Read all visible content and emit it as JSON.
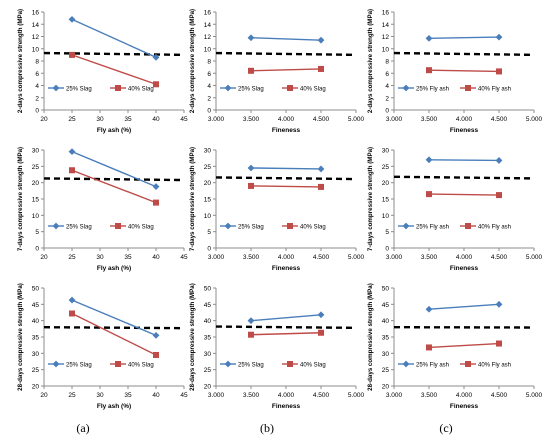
{
  "colors": {
    "series1": "#4a7ebb",
    "series2": "#be4b48",
    "reference": "#000000",
    "axis": "#8c8c8c",
    "text": "#000000"
  },
  "columns": [
    {
      "label": "(a)",
      "xlabel": "Fly ash (%)",
      "xlim": [
        20,
        45
      ],
      "xticks": [
        "20",
        "25",
        "30",
        "35",
        "40",
        "45"
      ]
    },
    {
      "label": "(b)",
      "xlabel": "Fineness",
      "xlim": [
        3.0,
        5.0
      ],
      "xticks": [
        "3.000",
        "3.500",
        "4.000",
        "4.500",
        "5.000"
      ]
    },
    {
      "label": "(c)",
      "xlabel": "Fineness",
      "xlim": [
        3.0,
        5.0
      ],
      "xticks": [
        "3.000",
        "3.500",
        "4.000",
        "4.500",
        "5.000"
      ]
    }
  ],
  "rows": [
    {
      "ylabel": "2-days compressive strength (MPa)",
      "ylim": [
        0,
        16
      ],
      "yticks": [
        "0",
        "2",
        "4",
        "6",
        "8",
        "10",
        "12",
        "14",
        "16"
      ]
    },
    {
      "ylabel": "7-days compressive strength (MPa)",
      "ylim": [
        0,
        30
      ],
      "yticks": [
        "0",
        "5",
        "10",
        "15",
        "20",
        "25",
        "30"
      ]
    },
    {
      "ylabel": "28-days compressive strength (MPa)",
      "ylim": [
        20,
        50
      ],
      "yticks": [
        "20",
        "25",
        "30",
        "35",
        "40",
        "45",
        "50"
      ]
    }
  ],
  "chart_data": [
    {
      "type": "line",
      "xlabel": "Fly ash (%)",
      "ylabel": "2-days compressive strength (MPa)",
      "xlim": [
        20,
        45
      ],
      "ylim": [
        0,
        16
      ],
      "grid": false,
      "legend": "bottom-left",
      "series": [
        {
          "name": "25% Slag",
          "x": [
            25,
            40
          ],
          "values": [
            14.8,
            8.6
          ]
        },
        {
          "name": "40% Slag",
          "x": [
            25,
            40
          ],
          "values": [
            9.0,
            4.2
          ]
        }
      ],
      "reference_line": {
        "x": [
          20,
          45
        ],
        "values": [
          9.3,
          9.0
        ]
      }
    },
    {
      "type": "line",
      "xlabel": "Fineness",
      "ylabel": "2-days compressive strength (MPa)",
      "xlim": [
        3.0,
        5.0
      ],
      "ylim": [
        0,
        16
      ],
      "grid": false,
      "legend": "bottom-left",
      "series": [
        {
          "name": "25% Slag",
          "x": [
            3.5,
            4.5
          ],
          "values": [
            11.8,
            11.4
          ]
        },
        {
          "name": "40% Slag",
          "x": [
            3.5,
            4.5
          ],
          "values": [
            6.4,
            6.7
          ]
        }
      ],
      "reference_line": {
        "x": [
          3.0,
          5.0
        ],
        "values": [
          9.3,
          9.0
        ]
      }
    },
    {
      "type": "line",
      "xlabel": "Fineness",
      "ylabel": "2-days compressive strength (MPa)",
      "xlim": [
        3.0,
        5.0
      ],
      "ylim": [
        0,
        16
      ],
      "grid": false,
      "legend": "bottom-left",
      "series": [
        {
          "name": "25% Fly ash",
          "x": [
            3.5,
            4.5
          ],
          "values": [
            11.7,
            11.9
          ]
        },
        {
          "name": "40% Fly ash",
          "x": [
            3.5,
            4.5
          ],
          "values": [
            6.5,
            6.3
          ]
        }
      ],
      "reference_line": {
        "x": [
          3.0,
          5.0
        ],
        "values": [
          9.3,
          9.0
        ]
      }
    },
    {
      "type": "line",
      "xlabel": "Fly ash (%)",
      "ylabel": "7-days compressive strength (MPa)",
      "xlim": [
        20,
        45
      ],
      "ylim": [
        0,
        30
      ],
      "grid": false,
      "legend": "bottom-left",
      "series": [
        {
          "name": "25% Slag",
          "x": [
            25,
            40
          ],
          "values": [
            29.5,
            18.8
          ]
        },
        {
          "name": "40% Slag",
          "x": [
            25,
            40
          ],
          "values": [
            23.8,
            13.9
          ]
        }
      ],
      "reference_line": {
        "x": [
          20,
          45
        ],
        "values": [
          21.3,
          20.8
        ]
      }
    },
    {
      "type": "line",
      "xlabel": "Fineness",
      "ylabel": "7-days compressive strength (MPa)",
      "xlim": [
        3.0,
        5.0
      ],
      "ylim": [
        0,
        30
      ],
      "grid": false,
      "legend": "bottom-left",
      "series": [
        {
          "name": "25% Slag",
          "x": [
            3.5,
            4.5
          ],
          "values": [
            24.5,
            24.2
          ]
        },
        {
          "name": "40% Slag",
          "x": [
            3.5,
            4.5
          ],
          "values": [
            19.0,
            18.7
          ]
        }
      ],
      "reference_line": {
        "x": [
          3.0,
          5.0
        ],
        "values": [
          21.6,
          21.1
        ]
      }
    },
    {
      "type": "line",
      "xlabel": "Fineness",
      "ylabel": "7-days compressive strength (MPa)",
      "xlim": [
        3.0,
        5.0
      ],
      "ylim": [
        0,
        30
      ],
      "grid": false,
      "legend": "bottom-left",
      "series": [
        {
          "name": "25% Fly ash",
          "x": [
            3.5,
            4.5
          ],
          "values": [
            27.0,
            26.8
          ]
        },
        {
          "name": "40% Fly ash",
          "x": [
            3.5,
            4.5
          ],
          "values": [
            16.5,
            16.2
          ]
        }
      ],
      "reference_line": {
        "x": [
          3.0,
          5.0
        ],
        "values": [
          21.8,
          21.3
        ]
      }
    },
    {
      "type": "line",
      "xlabel": "Fly ash (%)",
      "ylabel": "28-days compressive strength (MPa)",
      "xlim": [
        20,
        45
      ],
      "ylim": [
        20,
        50
      ],
      "grid": false,
      "legend": "bottom-left",
      "series": [
        {
          "name": "25% Slag",
          "x": [
            25,
            40
          ],
          "values": [
            46.3,
            35.5
          ]
        },
        {
          "name": "40% Slag",
          "x": [
            25,
            40
          ],
          "values": [
            42.2,
            29.5
          ]
        }
      ],
      "reference_line": {
        "x": [
          20,
          45
        ],
        "values": [
          38.0,
          37.7
        ]
      }
    },
    {
      "type": "line",
      "xlabel": "Fineness",
      "ylabel": "28-days compressive strength (MPa)",
      "xlim": [
        3.0,
        5.0
      ],
      "ylim": [
        20,
        50
      ],
      "grid": false,
      "legend": "bottom-left",
      "series": [
        {
          "name": "25% Slag",
          "x": [
            3.5,
            4.5
          ],
          "values": [
            40.0,
            41.8
          ]
        },
        {
          "name": "40% Slag",
          "x": [
            3.5,
            4.5
          ],
          "values": [
            35.7,
            36.3
          ]
        }
      ],
      "reference_line": {
        "x": [
          3.0,
          5.0
        ],
        "values": [
          38.2,
          37.8
        ]
      }
    },
    {
      "type": "line",
      "xlabel": "Fineness",
      "ylabel": "28-days compressive strength (MPa)",
      "xlim": [
        3.0,
        5.0
      ],
      "ylim": [
        20,
        50
      ],
      "grid": false,
      "legend": "bottom-left",
      "series": [
        {
          "name": "25% Fly ash",
          "x": [
            3.5,
            4.5
          ],
          "values": [
            43.5,
            45.0
          ]
        },
        {
          "name": "40% Fly ash",
          "x": [
            3.5,
            4.5
          ],
          "values": [
            31.8,
            33.0
          ]
        }
      ],
      "reference_line": {
        "x": [
          3.0,
          5.0
        ],
        "values": [
          38.0,
          37.9
        ]
      }
    }
  ]
}
